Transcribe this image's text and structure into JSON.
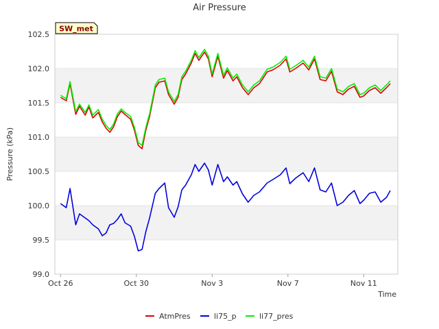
{
  "chart_data": {
    "type": "line",
    "title": "Air Pressure",
    "xlabel": "Time",
    "ylabel": "Pressure (kPa)",
    "badge": "SW_met",
    "ylim": [
      99.0,
      102.5
    ],
    "xlim": [
      -0.3,
      17.8
    ],
    "yticks": [
      {
        "value": 99.0,
        "label": "99.0"
      },
      {
        "value": 99.5,
        "label": "99.5"
      },
      {
        "value": 100.0,
        "label": "100.0"
      },
      {
        "value": 100.5,
        "label": "100.5"
      },
      {
        "value": 101.0,
        "label": "101.0"
      },
      {
        "value": 101.5,
        "label": "101.5"
      },
      {
        "value": 102.0,
        "label": "102.0"
      },
      {
        "value": 102.5,
        "label": "102.5"
      }
    ],
    "xticks": [
      {
        "value": 0,
        "label": "Oct 26"
      },
      {
        "value": 4,
        "label": "Oct 30"
      },
      {
        "value": 8,
        "label": "Nov 3"
      },
      {
        "value": 12,
        "label": "Nov 7"
      },
      {
        "value": 16,
        "label": "Nov 11"
      }
    ],
    "legend_position": "bottom-center",
    "colors": {
      "band": "#f2f2f2",
      "grid": "#dddddd",
      "axis": "#cccccc",
      "badge_fill": "#ffffcc",
      "badge_text": "#8b0000"
    },
    "x_days": [
      0.0,
      0.3,
      0.5,
      0.8,
      1.0,
      1.3,
      1.5,
      1.7,
      2.0,
      2.2,
      2.4,
      2.6,
      2.8,
      3.0,
      3.2,
      3.4,
      3.7,
      3.9,
      4.1,
      4.3,
      4.5,
      4.7,
      5.0,
      5.2,
      5.5,
      5.7,
      6.0,
      6.2,
      6.4,
      6.6,
      6.9,
      7.1,
      7.3,
      7.6,
      7.8,
      8.0,
      8.3,
      8.6,
      8.8,
      9.1,
      9.3,
      9.6,
      9.9,
      10.2,
      10.5,
      10.9,
      11.2,
      11.6,
      11.9,
      12.1,
      12.4,
      12.8,
      13.1,
      13.4,
      13.7,
      14.0,
      14.3,
      14.6,
      14.9,
      15.2,
      15.5,
      15.8,
      16.0,
      16.3,
      16.6,
      16.9,
      17.2,
      17.4
    ],
    "series": [
      {
        "name": "AtmPres",
        "color": "#dd0000",
        "values": [
          101.58,
          101.53,
          101.78,
          101.33,
          101.45,
          101.32,
          101.44,
          101.28,
          101.36,
          101.22,
          101.13,
          101.07,
          101.15,
          101.3,
          101.38,
          101.33,
          101.26,
          101.1,
          100.88,
          100.83,
          101.1,
          101.3,
          101.72,
          101.8,
          101.82,
          101.62,
          101.48,
          101.58,
          101.84,
          101.92,
          102.08,
          102.22,
          102.12,
          102.24,
          102.14,
          101.88,
          102.18,
          101.86,
          101.97,
          101.82,
          101.88,
          101.72,
          101.62,
          101.72,
          101.78,
          101.95,
          101.98,
          102.05,
          102.14,
          101.95,
          102.0,
          102.08,
          101.98,
          102.14,
          101.84,
          101.82,
          101.96,
          101.66,
          101.62,
          101.7,
          101.74,
          101.58,
          101.6,
          101.68,
          101.72,
          101.64,
          101.72,
          101.78
        ]
      },
      {
        "name": "li75_p",
        "color": "#0000dd",
        "values": [
          100.03,
          99.97,
          100.25,
          99.72,
          99.88,
          99.82,
          99.78,
          99.72,
          99.66,
          99.56,
          99.6,
          99.72,
          99.74,
          99.8,
          99.88,
          99.75,
          99.7,
          99.55,
          99.34,
          99.36,
          99.62,
          99.82,
          100.18,
          100.25,
          100.33,
          99.97,
          99.83,
          99.98,
          100.23,
          100.3,
          100.45,
          100.6,
          100.5,
          100.62,
          100.52,
          100.3,
          100.6,
          100.35,
          100.42,
          100.3,
          100.35,
          100.17,
          100.05,
          100.15,
          100.2,
          100.33,
          100.38,
          100.45,
          100.55,
          100.32,
          100.4,
          100.48,
          100.35,
          100.55,
          100.23,
          100.2,
          100.33,
          100.0,
          100.05,
          100.15,
          100.22,
          100.03,
          100.08,
          100.18,
          100.2,
          100.05,
          100.12,
          100.22
        ]
      },
      {
        "name": "li77_pres",
        "color": "#00ee00",
        "values": [
          101.61,
          101.56,
          101.81,
          101.37,
          101.48,
          101.36,
          101.47,
          101.32,
          101.4,
          101.26,
          101.17,
          101.11,
          101.19,
          101.34,
          101.41,
          101.36,
          101.3,
          101.14,
          100.92,
          100.88,
          101.14,
          101.34,
          101.76,
          101.84,
          101.86,
          101.66,
          101.52,
          101.62,
          101.88,
          101.96,
          102.12,
          102.26,
          102.16,
          102.28,
          102.18,
          101.92,
          102.22,
          101.9,
          102.01,
          101.86,
          101.92,
          101.76,
          101.66,
          101.76,
          101.82,
          101.99,
          102.02,
          102.09,
          102.18,
          101.99,
          102.04,
          102.12,
          102.02,
          102.18,
          101.88,
          101.86,
          102.0,
          101.7,
          101.66,
          101.74,
          101.78,
          101.62,
          101.64,
          101.72,
          101.76,
          101.68,
          101.76,
          101.82
        ]
      }
    ]
  }
}
